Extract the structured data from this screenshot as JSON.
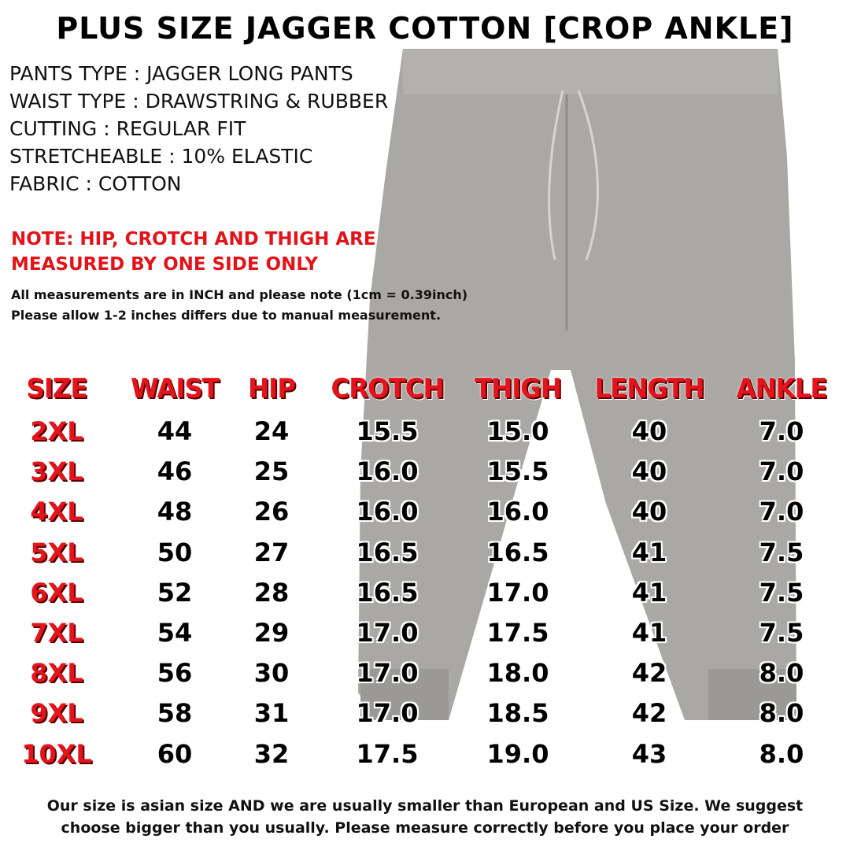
{
  "title": "PLUS SIZE JAGGER COTTON [CROP ANKLE]",
  "specs": [
    "PANTS TYPE : JAGGER LONG PANTS",
    "WAIST TYPE : DRAWSTRING & RUBBER",
    "CUTTING : REGULAR FIT",
    "STRETCHEABLE : 10% ELASTIC",
    "FABRIC : COTTON"
  ],
  "note": [
    "NOTE: HIP, CROTCH AND THIGH ARE",
    "MEASURED BY ONE SIDE ONLY"
  ],
  "info": [
    "All measurements are in INCH and please note (1cm = 0.39inch)",
    "Please allow 1-2 inches differs due to manual measurement."
  ],
  "table": {
    "headers": [
      "SIZE",
      "WAIST",
      "HIP",
      "CROTCH",
      "THIGH",
      "LENGTH",
      "ANKLE"
    ],
    "rows": [
      [
        "2XL",
        "44",
        "24",
        "15.5",
        "15.0",
        "40",
        "7.0"
      ],
      [
        "3XL",
        "46",
        "25",
        "16.0",
        "15.5",
        "40",
        "7.0"
      ],
      [
        "4XL",
        "48",
        "26",
        "16.0",
        "16.0",
        "40",
        "7.0"
      ],
      [
        "5XL",
        "50",
        "27",
        "16.5",
        "16.5",
        "41",
        "7.5"
      ],
      [
        "6XL",
        "52",
        "28",
        "16.5",
        "17.0",
        "41",
        "7.5"
      ],
      [
        "7XL",
        "54",
        "29",
        "17.0",
        "17.5",
        "41",
        "7.5"
      ],
      [
        "8XL",
        "56",
        "30",
        "17.0",
        "18.0",
        "42",
        "8.0"
      ],
      [
        "9XL",
        "58",
        "31",
        "17.0",
        "18.5",
        "42",
        "8.0"
      ],
      [
        "10XL",
        "60",
        "32",
        "17.5",
        "19.0",
        "43",
        "8.0"
      ]
    ]
  },
  "footer": [
    "Our size is asian size AND we are usually smaller than European and US Size. We suggest",
    "choose bigger than you usually. Please measure correctly before you place your order"
  ],
  "colors": {
    "accent": "#e3141b",
    "pants": "#a9a7a3"
  }
}
